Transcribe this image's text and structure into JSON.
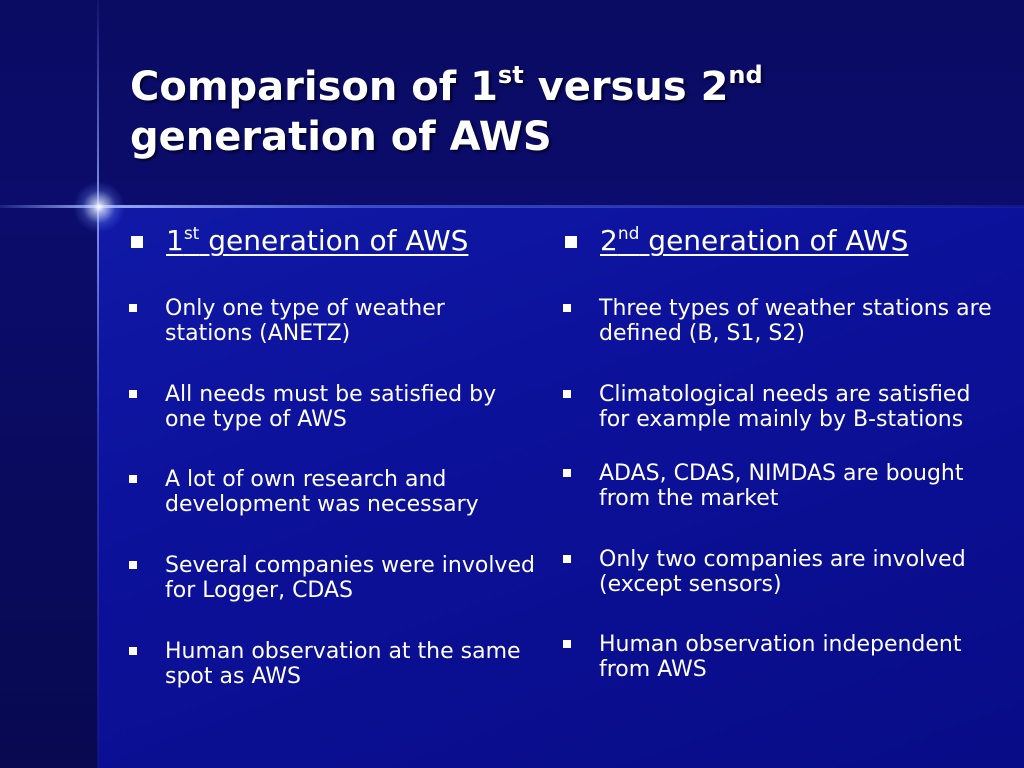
{
  "title": {
    "part1": "Comparison of 1",
    "sup1": "st",
    "part2": " versus 2",
    "sup2": "nd",
    "line2": "generation of AWS"
  },
  "left_column": {
    "heading_num": "1",
    "heading_sup": "st",
    "heading_rest": " generation of AWS",
    "items": [
      "Only one type of weather stations (ANETZ)",
      "All needs must be satisfied by one type of AWS",
      "A lot of own research and development was necessary",
      "Several companies were involved for Logger, CDAS",
      "Human observation at the same spot as AWS"
    ]
  },
  "right_column": {
    "heading_num": "2",
    "heading_sup": "nd",
    "heading_rest": " generation of AWS",
    "items": [
      "Three types of weather stations are defined (B, S1, S2)",
      "Climatological needs are satisfied for example mainly by B-stations",
      "ADAS, CDAS, NIMDAS are bought from the market",
      "Only two companies are involved (except sensors)",
      "Human observation independent from AWS"
    ]
  },
  "colors": {
    "background": "#0c0e7e",
    "panel": "#1019a6",
    "text": "#ffffff"
  }
}
